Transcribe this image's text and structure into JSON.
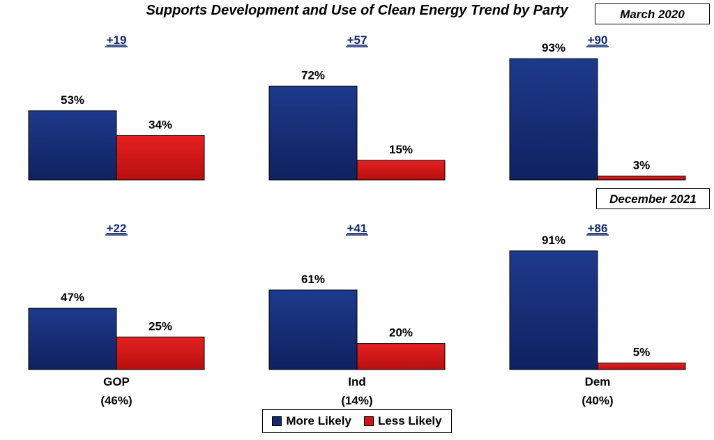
{
  "title": "Supports Development and Use of Clean Energy Trend by Party",
  "colors": {
    "more_likely": "#14286e",
    "less_likely": "#d41414",
    "diff": "#14286e"
  },
  "legend": {
    "more_label": "More Likely",
    "less_label": "Less Likely"
  },
  "chart_data": [
    {
      "type": "bar",
      "period": "March 2020",
      "categories": [
        "GOP",
        "Ind",
        "Dem"
      ],
      "series": [
        {
          "name": "More Likely",
          "values": [
            53,
            72,
            93
          ]
        },
        {
          "name": "Less Likely",
          "values": [
            34,
            15,
            3
          ]
        }
      ],
      "value_labels": {
        "more": [
          "53%",
          "72%",
          "93%"
        ],
        "less": [
          "34%",
          "15%",
          "3%"
        ]
      },
      "differences": [
        "+19",
        "+57",
        "+90"
      ],
      "ylim": [
        0,
        100
      ]
    },
    {
      "type": "bar",
      "period": "December 2021",
      "categories": [
        "GOP",
        "Ind",
        "Dem"
      ],
      "category_labels": [
        "GOP",
        "Ind",
        "Dem"
      ],
      "category_sublabels": [
        "(46%)",
        "(14%)",
        "(40%)"
      ],
      "series": [
        {
          "name": "More Likely",
          "values": [
            47,
            61,
            91
          ]
        },
        {
          "name": "Less Likely",
          "values": [
            25,
            20,
            5
          ]
        }
      ],
      "value_labels": {
        "more": [
          "47%",
          "61%",
          "91%"
        ],
        "less": [
          "25%",
          "20%",
          "5%"
        ]
      },
      "differences": [
        "+22",
        "+41",
        "+86"
      ],
      "ylim": [
        0,
        100
      ]
    }
  ]
}
